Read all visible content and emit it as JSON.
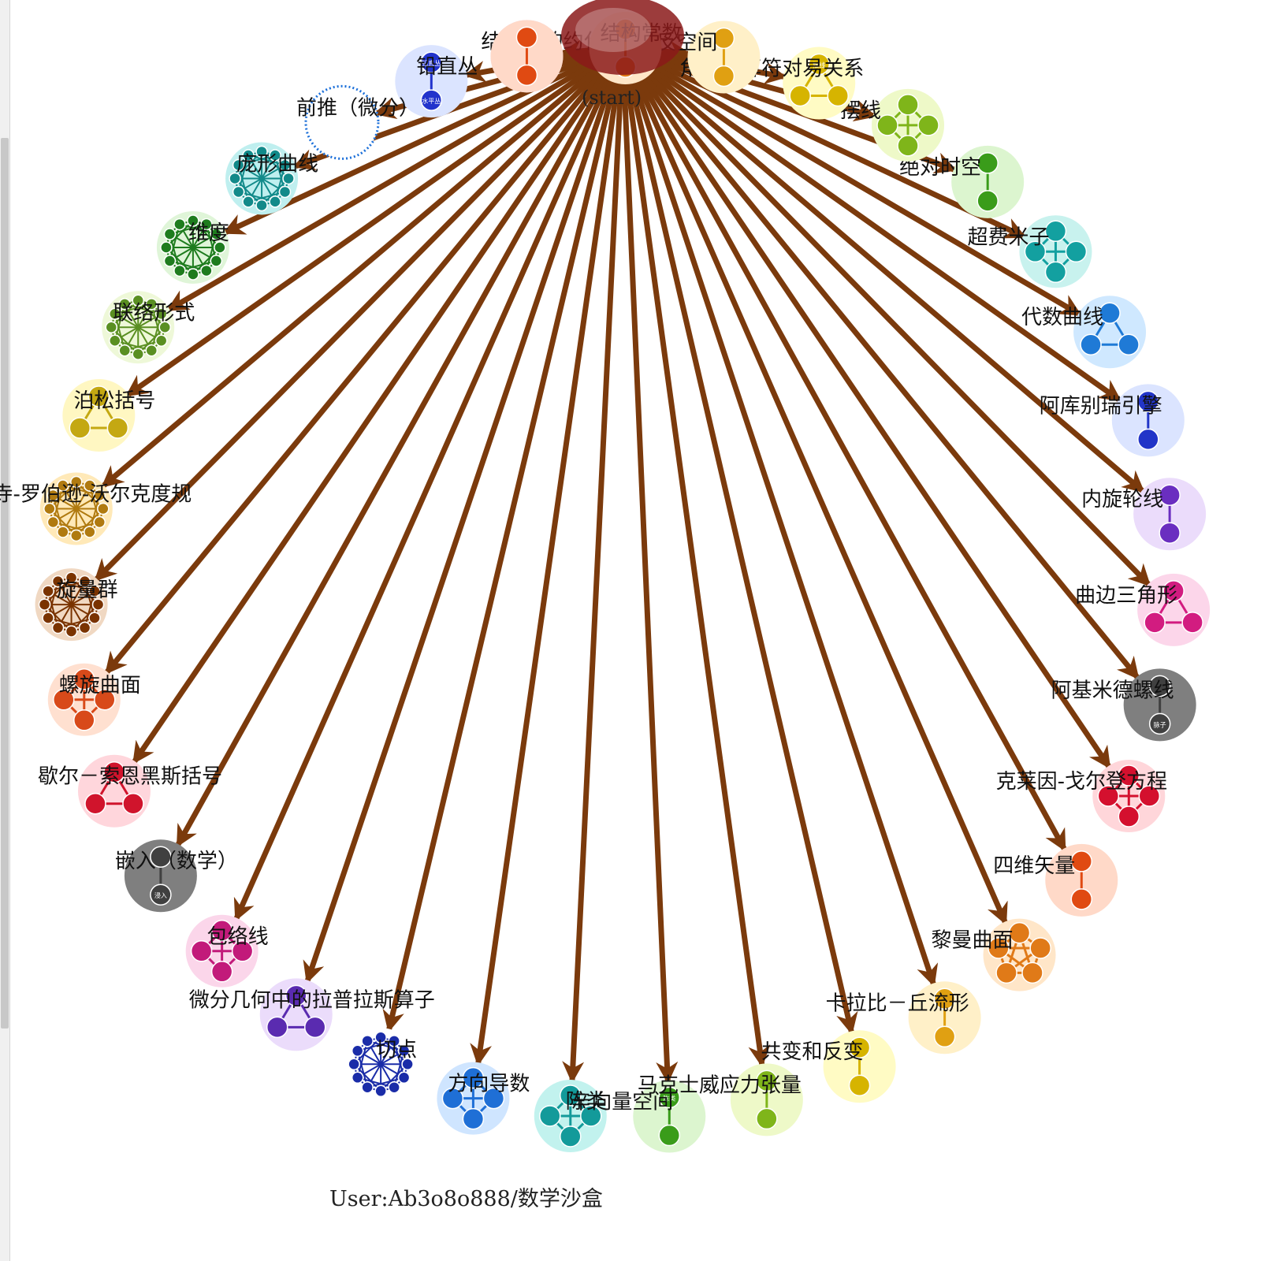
{
  "hub": {
    "label": "(start)",
    "color": "#8b1a1a"
  },
  "edge_color": "#7b3a0c",
  "footer": "User:Ab3o8o888/数学沙盒",
  "nodes": [
    {
      "label": "结构群的约化",
      "color": "#7b3fc4",
      "bg": "#e6d8fb",
      "kind": "k4"
    },
    {
      "label": "铅直丛",
      "color": "#2233cc",
      "bg": "#dbe4ff",
      "kind": "pair",
      "sub": [
        "铅直丛",
        "水平丛"
      ]
    },
    {
      "label": "前推（微分）",
      "color": "#1b6fd9",
      "bg": "#ffffff",
      "kind": "scribble"
    },
    {
      "label": "庞形曲线",
      "color": "#128a8a",
      "bg": "#bfefef",
      "kind": "dense"
    },
    {
      "label": "维度",
      "color": "#1e7c1e",
      "bg": "#dff5d8",
      "kind": "dense"
    },
    {
      "label": "联络形式",
      "color": "#5a8f22",
      "bg": "#eef8d8",
      "kind": "dense"
    },
    {
      "label": "泊松括号",
      "color": "#c4a812",
      "bg": "#fff7c2",
      "kind": "tri"
    },
    {
      "label": "寺-罗伯逊-沃尔克度规",
      "color": "#b07a10",
      "bg": "#ffe9b8",
      "kind": "dense"
    },
    {
      "label": "旋量群",
      "color": "#7a3300",
      "bg": "#f0d8c2",
      "kind": "dense"
    },
    {
      "label": "螺旋曲面",
      "color": "#d84a1a",
      "bg": "#ffe0d0",
      "kind": "k4"
    },
    {
      "label": "歇尔－索恩黑斯括号",
      "color": "#d0142c",
      "bg": "#ffd6dc",
      "kind": "tri"
    },
    {
      "label": "嵌入（数学）",
      "color": "#404040",
      "bg": "#7f7f7f",
      "kind": "pair",
      "sub": [
        "",
        "浸入"
      ]
    },
    {
      "label": "包络线",
      "color": "#c21a7a",
      "bg": "#fbd6ea",
      "kind": "k4"
    },
    {
      "label": "微分几何中的拉普拉斯算子",
      "color": "#5a2bb0",
      "bg": "#ebdcfb",
      "kind": "tri"
    },
    {
      "label": "切点",
      "color": "#1a2ca8",
      "bg": "#ffffff",
      "kind": "dense"
    },
    {
      "label": "方向导数",
      "color": "#1f6fd6",
      "bg": "#cfe5ff",
      "kind": "k4"
    },
    {
      "label": "陈类",
      "color": "#139a9a",
      "bg": "#c2f2ee",
      "kind": "k4"
    },
    {
      "label": "辛向量空间",
      "color": "#3a9c1a",
      "bg": "#dcf5cf",
      "kind": "pair",
      "sub": [
        "陈类",
        ""
      ]
    },
    {
      "label": "马克士威应力张量",
      "color": "#7fb51a",
      "bg": "#eef9c8",
      "kind": "pair",
      "sub": [
        "",
        ""
      ]
    },
    {
      "label": "共变和反变",
      "color": "#d6b400",
      "bg": "#fffbc4",
      "kind": "pair",
      "sub": [
        "",
        ""
      ]
    },
    {
      "label": "卡拉比－丘流形",
      "color": "#e0a012",
      "bg": "#fff0c8",
      "kind": "pair",
      "sub": [
        "",
        ""
      ]
    },
    {
      "label": "黎曼曲面",
      "color": "#e07a18",
      "bg": "#ffe6c8",
      "kind": "k5"
    },
    {
      "label": "四维矢量",
      "color": "#e04a12",
      "bg": "#ffd9c8",
      "kind": "pair",
      "sub": [
        "",
        ""
      ]
    },
    {
      "label": "克莱因-戈尔登方程",
      "color": "#d4102e",
      "bg": "#ffd6da",
      "kind": "k4"
    },
    {
      "label": "阿基米德螺线",
      "color": "#404040",
      "bg": "#7f7f7f",
      "kind": "pair",
      "sub": [
        "",
        "脉子"
      ]
    },
    {
      "label": "曲边三角形",
      "color": "#d21c80",
      "bg": "#fcd6ea",
      "kind": "tri"
    },
    {
      "label": "内旋轮线",
      "color": "#6a2ec0",
      "bg": "#ebdcfb",
      "kind": "pair",
      "sub": [
        "",
        ""
      ]
    },
    {
      "label": "阿库别瑞引擎",
      "color": "#2235c8",
      "bg": "#dbe4ff",
      "kind": "pair",
      "sub": [
        "",
        ""
      ]
    },
    {
      "label": "代数曲线",
      "color": "#1f7ad6",
      "bg": "#cfe8ff",
      "kind": "tri"
    },
    {
      "label": "超费米子",
      "color": "#13a0a0",
      "bg": "#c8f2ee",
      "kind": "k4"
    },
    {
      "label": "绝对时空",
      "color": "#3a9c1a",
      "bg": "#dcf5cf",
      "kind": "pair",
      "sub": [
        "",
        ""
      ]
    },
    {
      "label": "摆线",
      "color": "#7fb51a",
      "bg": "#eef9c8",
      "kind": "k4"
    },
    {
      "label": "角动量算符对易关系",
      "color": "#d6b400",
      "bg": "#fffbc4",
      "kind": "tri",
      "sub": [
        "摆线",
        "",
        ""
      ]
    },
    {
      "label": "自反空间",
      "color": "#e0a012",
      "bg": "#fff0c8",
      "kind": "pair",
      "sub": [
        "",
        ""
      ]
    },
    {
      "label": "结构常数",
      "color": "#e07a18",
      "bg": "#ffe6c8",
      "kind": "pair",
      "sub": [
        "",
        ""
      ]
    },
    {
      "label": "",
      "color": "#e04a12",
      "bg": "#ffd9c8",
      "kind": "pair",
      "sub": [
        "",
        ""
      ]
    }
  ]
}
